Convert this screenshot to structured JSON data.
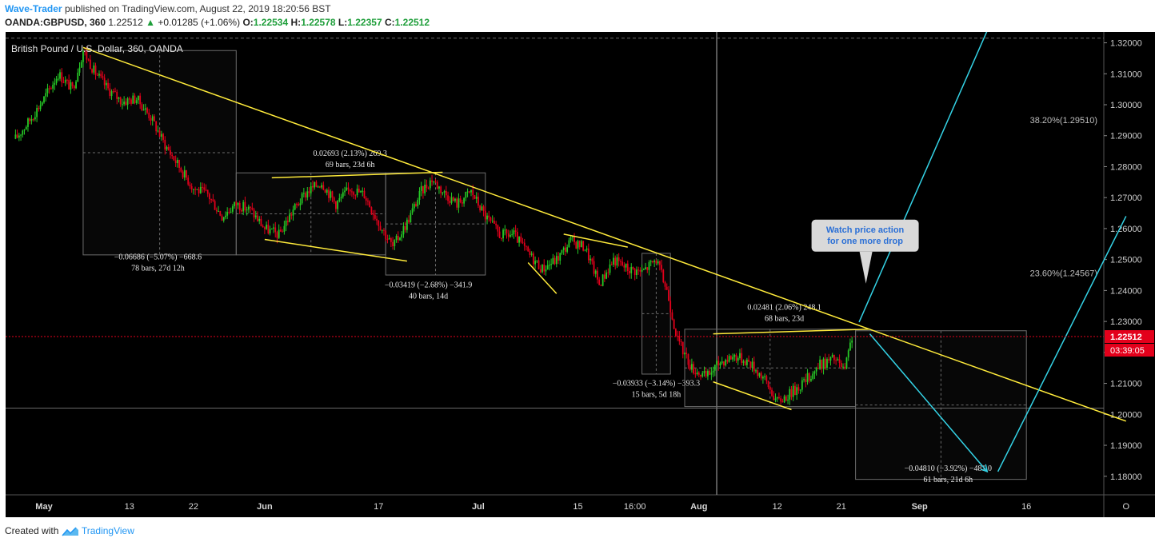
{
  "header": {
    "author": "Wave-Trader",
    "published_text": "published on TradingView.com, August 22, 2019 18:20:56 BST",
    "symbol": "OANDA:GBPUSD, 360",
    "last": "1.22512",
    "change": "+0.01285 (+1.06%)",
    "o_label": "O:",
    "o": "1.22534",
    "h_label": "H:",
    "h": "1.22578",
    "l_label": "L:",
    "l": "1.22357",
    "c_label": "C:",
    "c": "1.22512"
  },
  "footer": {
    "created_with": "Created with",
    "brand": "TradingView",
    "logo_icon": "tradingview-logo-icon"
  },
  "colors": {
    "bg": "#000000",
    "up": "#26c926",
    "down": "#e3001b",
    "trend": "#ffeb3b",
    "projection": "#34d3e6",
    "price_tag": "#e3001b",
    "callout": "#d9d9d9",
    "callout_text": "#2a6fd6"
  },
  "chart_data": {
    "type": "candlestick",
    "title": "British Pound / U.S. Dollar, 360, OANDA",
    "ylim": [
      1.174,
      1.3235
    ],
    "y_ticks": [
      "1.32000",
      "1.31000",
      "1.30000",
      "1.29000",
      "1.28000",
      "1.27000",
      "1.26000",
      "1.25000",
      "1.24000",
      "1.23000",
      "1.22000",
      "1.21000",
      "1.20000",
      "1.19000",
      "1.18000"
    ],
    "x_ticks": [
      {
        "label": "May",
        "day": 0,
        "bold": true
      },
      {
        "label": "13",
        "day": 12
      },
      {
        "label": "22",
        "day": 21
      },
      {
        "label": "Jun",
        "day": 31,
        "bold": true
      },
      {
        "label": "17",
        "day": 47
      },
      {
        "label": "Jul",
        "day": 61,
        "bold": true
      },
      {
        "label": "15",
        "day": 75
      },
      {
        "label": "16:00",
        "day": 83
      },
      {
        "label": "Aug",
        "day": 92,
        "bold": true
      },
      {
        "label": "12",
        "day": 103
      },
      {
        "label": "21",
        "day": 112
      },
      {
        "label": "Sep",
        "day": 123,
        "bold": true
      },
      {
        "label": "16",
        "day": 138
      },
      {
        "label": "O",
        "day": 152
      }
    ],
    "anchors": [
      {
        "day": -4,
        "price": 1.289
      },
      {
        "day": -2,
        "price": 1.295
      },
      {
        "day": 0,
        "price": 1.302
      },
      {
        "day": 2,
        "price": 1.31
      },
      {
        "day": 4,
        "price": 1.305
      },
      {
        "day": 5.5,
        "price": 1.3175
      },
      {
        "day": 7,
        "price": 1.311
      },
      {
        "day": 9,
        "price": 1.305
      },
      {
        "day": 11,
        "price": 1.301
      },
      {
        "day": 13,
        "price": 1.302
      },
      {
        "day": 15,
        "price": 1.296
      },
      {
        "day": 17,
        "price": 1.287
      },
      {
        "day": 19,
        "price": 1.28
      },
      {
        "day": 21,
        "price": 1.273
      },
      {
        "day": 23,
        "price": 1.271
      },
      {
        "day": 25,
        "price": 1.264
      },
      {
        "day": 27,
        "price": 1.268
      },
      {
        "day": 29,
        "price": 1.266
      },
      {
        "day": 31,
        "price": 1.26
      },
      {
        "day": 33,
        "price": 1.258
      },
      {
        "day": 35,
        "price": 1.266
      },
      {
        "day": 37,
        "price": 1.272
      },
      {
        "day": 39,
        "price": 1.275
      },
      {
        "day": 41,
        "price": 1.268
      },
      {
        "day": 43,
        "price": 1.273
      },
      {
        "day": 45,
        "price": 1.271
      },
      {
        "day": 47,
        "price": 1.262
      },
      {
        "day": 49,
        "price": 1.254
      },
      {
        "day": 51,
        "price": 1.262
      },
      {
        "day": 53,
        "price": 1.272
      },
      {
        "day": 54.5,
        "price": 1.276
      },
      {
        "day": 56,
        "price": 1.272
      },
      {
        "day": 58,
        "price": 1.268
      },
      {
        "day": 60,
        "price": 1.272
      },
      {
        "day": 62,
        "price": 1.264
      },
      {
        "day": 64,
        "price": 1.258
      },
      {
        "day": 66,
        "price": 1.258
      },
      {
        "day": 68,
        "price": 1.252
      },
      {
        "day": 70,
        "price": 1.247
      },
      {
        "day": 72,
        "price": 1.25
      },
      {
        "day": 74,
        "price": 1.256
      },
      {
        "day": 76,
        "price": 1.254
      },
      {
        "day": 78,
        "price": 1.242
      },
      {
        "day": 80,
        "price": 1.25
      },
      {
        "day": 82,
        "price": 1.247
      },
      {
        "day": 84,
        "price": 1.246
      },
      {
        "day": 86,
        "price": 1.25
      },
      {
        "day": 87.5,
        "price": 1.24
      },
      {
        "day": 89,
        "price": 1.224
      },
      {
        "day": 91,
        "price": 1.215
      },
      {
        "day": 93,
        "price": 1.212
      },
      {
        "day": 95,
        "price": 1.217
      },
      {
        "day": 97,
        "price": 1.219
      },
      {
        "day": 99,
        "price": 1.217
      },
      {
        "day": 101,
        "price": 1.212
      },
      {
        "day": 103,
        "price": 1.204
      },
      {
        "day": 105,
        "price": 1.207
      },
      {
        "day": 107,
        "price": 1.211
      },
      {
        "day": 109,
        "price": 1.216
      },
      {
        "day": 111,
        "price": 1.218
      },
      {
        "day": 112.5,
        "price": 1.214
      },
      {
        "day": 113.5,
        "price": 1.2251
      }
    ],
    "trendlines": [
      {
        "x1": 5.5,
        "y1": 1.3185,
        "x2": 152,
        "y2": 1.1978
      },
      {
        "x1": 32,
        "y1": 1.2764,
        "x2": 56,
        "y2": 1.2782
      },
      {
        "x1": 31,
        "y1": 1.2565,
        "x2": 51,
        "y2": 1.2495
      },
      {
        "x1": 68,
        "y1": 1.249,
        "x2": 72,
        "y2": 1.239
      },
      {
        "x1": 73,
        "y1": 1.2582,
        "x2": 82,
        "y2": 1.254
      },
      {
        "x1": 94,
        "y1": 1.226,
        "x2": 116,
        "y2": 1.2275
      },
      {
        "x1": 94,
        "y1": 1.2105,
        "x2": 105,
        "y2": 1.2015
      }
    ],
    "projection": [
      {
        "x1": 114.5,
        "y1": 1.2298,
        "x2": 135,
        "y2": 1.337
      },
      {
        "x1": 116,
        "y1": 1.226,
        "x2": 132.5,
        "y2": 1.1815
      },
      {
        "x1": 134,
        "y1": 1.1815,
        "x2": 152,
        "y2": 1.264
      }
    ],
    "measure_boxes": [
      {
        "x1": 5.5,
        "x2": 27,
        "y1": 1.2515,
        "y2": 1.3175,
        "label1": "−0.06686 (−5.07%) −668.6",
        "label2": "78 bars, 27d 12h",
        "label_day": 16,
        "label_y": 1.25,
        "pos": "below"
      },
      {
        "x1": 27,
        "x2": 48,
        "y1": 1.2515,
        "y2": 1.278,
        "label1": "0.02693 (2.13%) 269.3",
        "label2": "69 bars, 23d 6h",
        "label_day": 43,
        "label_y": 1.2835,
        "pos": "above"
      },
      {
        "x1": 48,
        "x2": 62,
        "y1": 1.245,
        "y2": 1.278,
        "label1": "−0.03419 (−2.68%) −341.9",
        "label2": "40 bars, 14d",
        "label_day": 54,
        "label_y": 1.241,
        "pos": "below"
      },
      {
        "x1": 84,
        "x2": 88,
        "y1": 1.213,
        "y2": 1.252,
        "label1": "−0.03933 (−3.14%) −393.3",
        "label2": "15 bars, 5d 18h",
        "label_day": 86,
        "label_y": 1.2093,
        "pos": "below"
      },
      {
        "x1": 90,
        "x2": 114,
        "y1": 1.2025,
        "y2": 1.2275,
        "label1": "0.02481 (2.06%) 248.1",
        "label2": "68 bars, 23d",
        "label_day": 104,
        "label_y": 1.2338,
        "pos": "above"
      },
      {
        "x1": 114,
        "x2": 138,
        "y1": 1.179,
        "y2": 1.227,
        "label1": "−0.04810 (−3.92%) −481.0",
        "label2": "61 bars, 21d 6h",
        "label_day": 127,
        "label_y": 1.1818,
        "pos": "below"
      }
    ],
    "fib_levels": [
      {
        "label": "38.20%(1.29510)",
        "price": 1.2951
      },
      {
        "label": "23.60%(1.24567)",
        "price": 1.2457
      }
    ],
    "horizontal_lines": [
      1.3215,
      1.202
    ],
    "current_price": {
      "value": "1.22512",
      "price": 1.22512,
      "countdown": "03:39:05"
    },
    "vertical_line_day": 94.5,
    "callout": {
      "line1": "Watch price action",
      "line2": "for one more drop",
      "day": 114,
      "price": 1.251
    }
  }
}
